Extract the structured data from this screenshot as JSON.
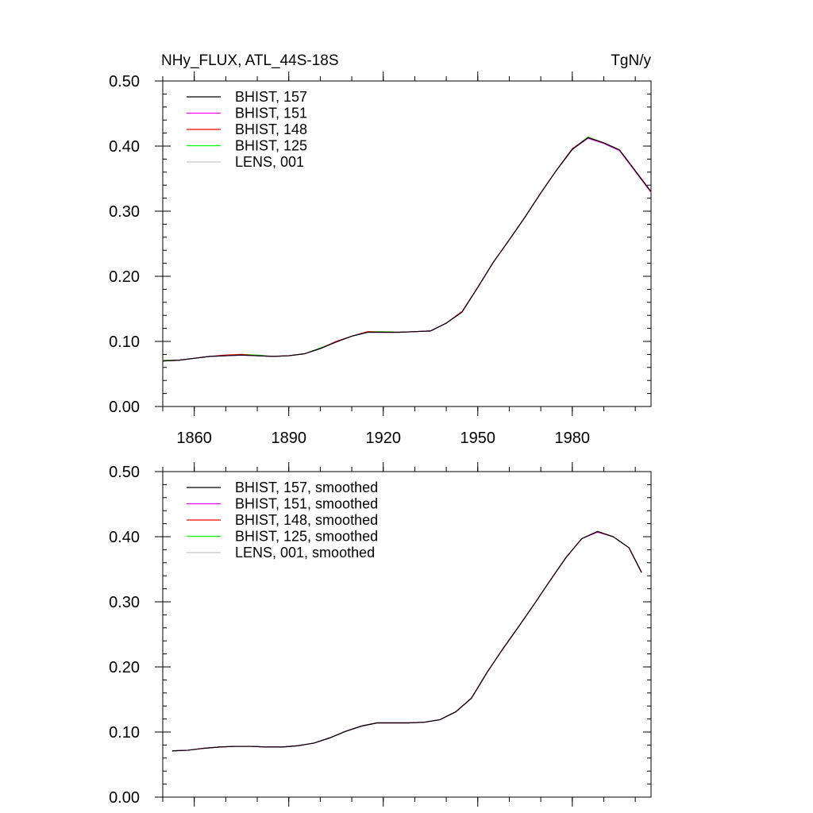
{
  "header": {
    "left_title": "NHy_FLUX, ATL_44S-18S",
    "right_title": "TgN/y"
  },
  "colors": {
    "BHIST_157": "#000000",
    "BHIST_151": "#ff00ff",
    "BHIST_148": "#ff0000",
    "BHIST_125": "#00ff00",
    "LENS_001": "#c8c8c8"
  },
  "chart_data": [
    {
      "type": "line",
      "y_tick_labels": [
        "0.00",
        "0.10",
        "0.20",
        "0.30",
        "0.40",
        "0.50"
      ],
      "x_tick_labels": [
        "1860",
        "1890",
        "1920",
        "1950",
        "1980"
      ],
      "xlim": [
        1850,
        2005
      ],
      "ylim": [
        0.0,
        0.5
      ],
      "legend_placement": "top-left",
      "grid": false,
      "x": [
        1850,
        1855,
        1860,
        1865,
        1870,
        1875,
        1880,
        1885,
        1890,
        1895,
        1900,
        1905,
        1910,
        1915,
        1920,
        1925,
        1930,
        1935,
        1940,
        1945,
        1950,
        1955,
        1960,
        1965,
        1970,
        1975,
        1980,
        1985,
        1990,
        1995,
        2000,
        2005
      ],
      "series": [
        {
          "name": "BHIST, 157",
          "color": "#000000",
          "values": [
            0.07,
            0.071,
            0.074,
            0.077,
            0.078,
            0.079,
            0.078,
            0.077,
            0.078,
            0.081,
            0.089,
            0.099,
            0.108,
            0.114,
            0.114,
            0.114,
            0.115,
            0.116,
            0.128,
            0.145,
            0.183,
            0.222,
            0.256,
            0.291,
            0.328,
            0.363,
            0.395,
            0.413,
            0.405,
            0.394,
            0.362,
            0.33
          ]
        },
        {
          "name": "BHIST, 151",
          "color": "#ff00ff",
          "values": [
            0.07,
            0.071,
            0.074,
            0.077,
            0.078,
            0.079,
            0.078,
            0.077,
            0.078,
            0.081,
            0.089,
            0.099,
            0.108,
            0.114,
            0.114,
            0.114,
            0.115,
            0.116,
            0.128,
            0.145,
            0.183,
            0.222,
            0.256,
            0.291,
            0.328,
            0.363,
            0.395,
            0.412,
            0.404,
            0.393,
            0.361,
            0.329
          ]
        },
        {
          "name": "BHIST, 148",
          "color": "#ff0000",
          "values": [
            0.07,
            0.071,
            0.074,
            0.077,
            0.079,
            0.08,
            0.078,
            0.077,
            0.078,
            0.081,
            0.089,
            0.1,
            0.108,
            0.115,
            0.114,
            0.114,
            0.115,
            0.116,
            0.128,
            0.146,
            0.183,
            0.222,
            0.256,
            0.291,
            0.328,
            0.363,
            0.396,
            0.413,
            0.405,
            0.394,
            0.362,
            0.33
          ]
        },
        {
          "name": "BHIST, 125",
          "color": "#00ff00",
          "values": [
            0.071,
            0.071,
            0.074,
            0.077,
            0.078,
            0.08,
            0.079,
            0.077,
            0.078,
            0.081,
            0.09,
            0.099,
            0.108,
            0.115,
            0.115,
            0.114,
            0.115,
            0.116,
            0.128,
            0.145,
            0.183,
            0.222,
            0.256,
            0.291,
            0.328,
            0.363,
            0.395,
            0.414,
            0.405,
            0.394,
            0.362,
            0.33
          ]
        },
        {
          "name": "LENS, 001",
          "color": "#c8c8c8",
          "values": [
            0.07,
            0.071,
            0.074,
            0.077,
            0.078,
            0.079,
            0.078,
            0.077,
            0.078,
            0.081,
            0.089,
            0.099,
            0.108,
            0.114,
            0.114,
            0.114,
            0.115,
            0.116,
            0.128,
            0.145,
            0.183,
            0.222,
            0.256,
            0.291,
            0.328,
            0.363,
            0.395,
            0.412,
            0.404,
            0.393,
            0.361,
            0.329
          ]
        }
      ]
    },
    {
      "type": "line",
      "y_tick_labels": [
        "0.00",
        "0.10",
        "0.20",
        "0.30",
        "0.40",
        "0.50"
      ],
      "xlim": [
        1850,
        2005
      ],
      "ylim": [
        0.0,
        0.5
      ],
      "legend_placement": "top-left",
      "grid": false,
      "x": [
        1853,
        1858,
        1863,
        1868,
        1873,
        1878,
        1883,
        1888,
        1893,
        1898,
        1903,
        1908,
        1913,
        1918,
        1923,
        1928,
        1933,
        1938,
        1943,
        1948,
        1953,
        1958,
        1963,
        1968,
        1973,
        1978,
        1983,
        1988,
        1993,
        1998,
        2002
      ],
      "series": [
        {
          "name": "BHIST, 157, smoothed",
          "color": "#000000",
          "values": [
            0.071,
            0.072,
            0.075,
            0.077,
            0.078,
            0.078,
            0.077,
            0.077,
            0.079,
            0.083,
            0.091,
            0.101,
            0.109,
            0.114,
            0.114,
            0.114,
            0.115,
            0.119,
            0.131,
            0.152,
            0.192,
            0.228,
            0.262,
            0.297,
            0.333,
            0.368,
            0.397,
            0.408,
            0.4,
            0.383,
            0.345
          ]
        },
        {
          "name": "BHIST, 151, smoothed",
          "color": "#ff00ff",
          "values": [
            0.071,
            0.072,
            0.075,
            0.077,
            0.078,
            0.078,
            0.077,
            0.077,
            0.079,
            0.083,
            0.091,
            0.101,
            0.109,
            0.114,
            0.114,
            0.114,
            0.115,
            0.119,
            0.131,
            0.152,
            0.192,
            0.228,
            0.262,
            0.297,
            0.333,
            0.368,
            0.397,
            0.407,
            0.4,
            0.383,
            0.345
          ]
        },
        {
          "name": "BHIST, 148, smoothed",
          "color": "#ff0000",
          "values": [
            0.071,
            0.072,
            0.075,
            0.077,
            0.078,
            0.078,
            0.077,
            0.077,
            0.079,
            0.083,
            0.091,
            0.101,
            0.109,
            0.114,
            0.114,
            0.114,
            0.115,
            0.119,
            0.131,
            0.152,
            0.192,
            0.228,
            0.262,
            0.297,
            0.333,
            0.368,
            0.397,
            0.408,
            0.4,
            0.383,
            0.345
          ]
        },
        {
          "name": "BHIST, 125, smoothed",
          "color": "#00ff00",
          "values": [
            0.071,
            0.072,
            0.075,
            0.077,
            0.078,
            0.078,
            0.077,
            0.077,
            0.079,
            0.083,
            0.091,
            0.101,
            0.109,
            0.114,
            0.114,
            0.114,
            0.115,
            0.119,
            0.131,
            0.152,
            0.192,
            0.228,
            0.262,
            0.297,
            0.333,
            0.368,
            0.397,
            0.408,
            0.4,
            0.383,
            0.345
          ]
        },
        {
          "name": "LENS, 001, smoothed",
          "color": "#c8c8c8",
          "values": [
            0.071,
            0.072,
            0.075,
            0.077,
            0.078,
            0.078,
            0.077,
            0.077,
            0.079,
            0.083,
            0.091,
            0.101,
            0.109,
            0.114,
            0.114,
            0.114,
            0.115,
            0.119,
            0.131,
            0.152,
            0.192,
            0.228,
            0.262,
            0.297,
            0.333,
            0.368,
            0.397,
            0.407,
            0.4,
            0.383,
            0.345
          ]
        }
      ]
    }
  ]
}
